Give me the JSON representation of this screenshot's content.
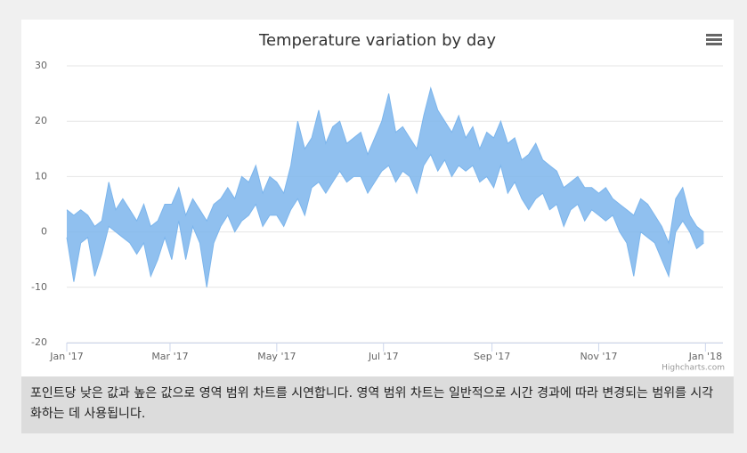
{
  "chart_data": {
    "type": "arearange",
    "title": "Temperature variation by day",
    "x": [
      0,
      4,
      8,
      12,
      16,
      20,
      24,
      28,
      32,
      36,
      40,
      44,
      48,
      52,
      56,
      60,
      64,
      68,
      72,
      76,
      80,
      84,
      88,
      92,
      96,
      100,
      104,
      108,
      112,
      116,
      120,
      124,
      128,
      132,
      136,
      140,
      144,
      148,
      152,
      156,
      160,
      164,
      168,
      172,
      176,
      180,
      184,
      188,
      192,
      196,
      200,
      204,
      208,
      212,
      216,
      220,
      224,
      228,
      232,
      236,
      240,
      244,
      248,
      252,
      256,
      260,
      264,
      268,
      272,
      276,
      280,
      284,
      288,
      292,
      296,
      300,
      304,
      308,
      312,
      316,
      320,
      324,
      328,
      332,
      336,
      340,
      344,
      348,
      352,
      356,
      360,
      364
    ],
    "low": [
      -1,
      -9,
      -2,
      -1,
      -8,
      -4,
      1,
      0,
      -1,
      -2,
      -4,
      -2,
      -8,
      -5,
      -1,
      -5,
      2,
      -5,
      1,
      -2,
      -10,
      -2,
      1,
      3,
      0,
      2,
      3,
      5,
      1,
      3,
      3,
      1,
      4,
      6,
      3,
      8,
      9,
      7,
      9,
      11,
      9,
      10,
      10,
      7,
      9,
      11,
      12,
      9,
      11,
      10,
      7,
      12,
      14,
      11,
      13,
      10,
      12,
      11,
      12,
      9,
      10,
      8,
      12,
      7,
      9,
      6,
      4,
      6,
      7,
      4,
      5,
      1,
      4,
      5,
      2,
      4,
      3,
      2,
      3,
      0,
      -2,
      -8,
      0,
      -1,
      -2,
      -5,
      -8,
      0,
      2,
      0,
      -3,
      -2
    ],
    "high": [
      4,
      3,
      4,
      3,
      1,
      2,
      9,
      4,
      6,
      4,
      2,
      5,
      1,
      2,
      5,
      5,
      8,
      3,
      6,
      4,
      2,
      5,
      6,
      8,
      6,
      10,
      9,
      12,
      7,
      10,
      9,
      7,
      12,
      20,
      15,
      17,
      22,
      16,
      19,
      20,
      16,
      17,
      18,
      14,
      17,
      20,
      25,
      18,
      19,
      17,
      15,
      21,
      26,
      22,
      20,
      18,
      21,
      17,
      19,
      15,
      18,
      17,
      20,
      16,
      17,
      13,
      14,
      16,
      13,
      12,
      11,
      8,
      9,
      10,
      8,
      8,
      7,
      8,
      6,
      5,
      4,
      3,
      6,
      5,
      3,
      1,
      -2,
      6,
      8,
      3,
      1,
      0
    ],
    "color": "#7cb5ec",
    "xlim": [
      0,
      375
    ],
    "xticks": [
      {
        "value": 0,
        "label": "Jan '17"
      },
      {
        "value": 59,
        "label": "Mar '17"
      },
      {
        "value": 120,
        "label": "May '17"
      },
      {
        "value": 181,
        "label": "Jul '17"
      },
      {
        "value": 243,
        "label": "Sep '17"
      },
      {
        "value": 304,
        "label": "Nov '17"
      },
      {
        "value": 365,
        "label": "Jan '18"
      }
    ],
    "ylim": [
      -20,
      30
    ],
    "yticks": [
      -20,
      -10,
      0,
      10,
      20,
      30
    ],
    "grid": true,
    "credits": "Highcharts.com"
  },
  "caption": "포인트당 낮은 값과 높은 값으로 영역 범위 차트를 시연합니다. 영역 범위 차트는 일반적으로 시간 경과에 따라 변경되는 범위를 시각화하는 데 사용됩니다."
}
